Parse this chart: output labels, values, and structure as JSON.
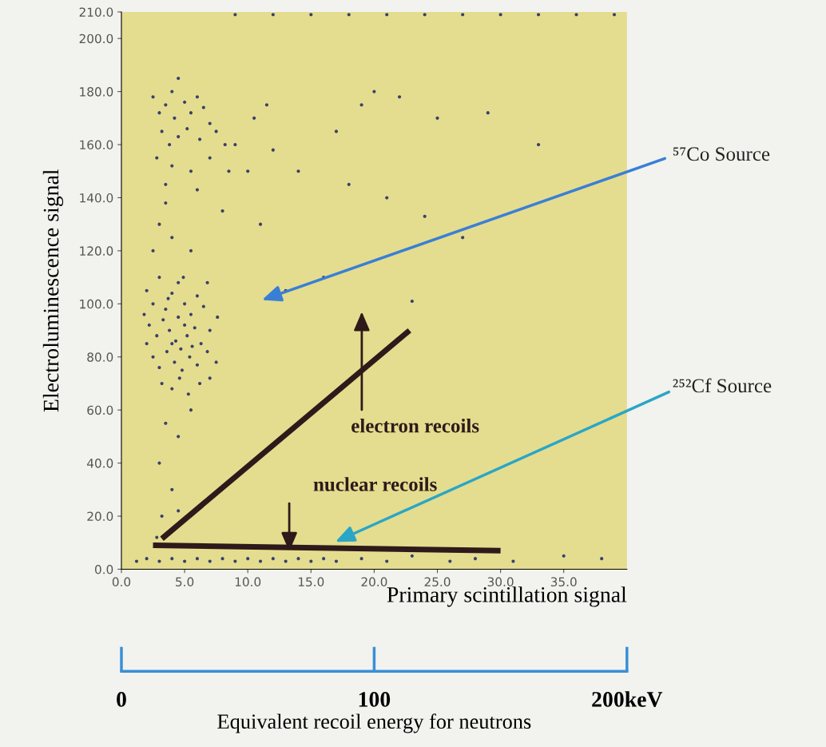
{
  "chart_data": {
    "type": "scatter",
    "xlabel": "Primary scintillation signal",
    "ylabel": "Electroluminescence signal",
    "x2label": "Equivalent recoil energy for neutrons",
    "xlim": [
      0,
      40
    ],
    "xticks": [
      {
        "value": 0,
        "label": "0.0"
      },
      {
        "value": 5,
        "label": "5.0"
      },
      {
        "value": 10,
        "label": "10.0"
      },
      {
        "value": 15,
        "label": "15.0"
      },
      {
        "value": 20,
        "label": "20.0"
      },
      {
        "value": 25,
        "label": "25.0"
      },
      {
        "value": 30,
        "label": "30.0"
      },
      {
        "value": 35,
        "label": "35.0"
      }
    ],
    "ylim": [
      0,
      210
    ],
    "yticks": [
      {
        "value": 0,
        "label": "0.0"
      },
      {
        "value": 20,
        "label": "20.0"
      },
      {
        "value": 40,
        "label": "40.0"
      },
      {
        "value": 60,
        "label": "60.0"
      },
      {
        "value": 80,
        "label": "80.0"
      },
      {
        "value": 100,
        "label": "100.0"
      },
      {
        "value": 120,
        "label": "120.0"
      },
      {
        "value": 140,
        "label": "140.0"
      },
      {
        "value": 160,
        "label": "160.0"
      },
      {
        "value": 180,
        "label": "180.0"
      },
      {
        "value": 200,
        "label": "200.0"
      },
      {
        "value": 210,
        "label": "210.0"
      }
    ],
    "x2lim": [
      0,
      200
    ],
    "x2ticks": [
      0,
      100,
      {
        "value": 200,
        "label": "200keV"
      }
    ],
    "grid": false,
    "legend": false,
    "series": [
      {
        "marker": "circle",
        "color": "#3b3f6b",
        "x": [
          2.5,
          3.0,
          3.5,
          4.0,
          4.5,
          4.2,
          5.0,
          5.5,
          6.0,
          6.5,
          7.0,
          3.2,
          3.8,
          4.5,
          5.2,
          6.2,
          7.5,
          8.2,
          2.8,
          4.0,
          5.5,
          7.0,
          8.5,
          3.5,
          6.0,
          10.5,
          9.0,
          11.5,
          10.0,
          12.0,
          3.0,
          4.0,
          3.5,
          5.5,
          8.0,
          2.5,
          11.0,
          14.0,
          17.0,
          19.0,
          20.0,
          22.0,
          25.0,
          29.0,
          33.0,
          18.0,
          21.0,
          24.0,
          27.0,
          16.0,
          13.0,
          23.0,
          2.0,
          2.5,
          3.0,
          3.5,
          4.0,
          4.5,
          5.0,
          5.5,
          6.0,
          6.5,
          2.2,
          2.8,
          3.3,
          3.8,
          4.3,
          4.7,
          5.2,
          5.8,
          6.3,
          7.0,
          2.5,
          3.0,
          3.6,
          4.2,
          4.8,
          5.4,
          6.0,
          6.8,
          7.5,
          3.2,
          4.0,
          4.6,
          5.3,
          6.2,
          7.0,
          4.5,
          5.0,
          4.0,
          5.6,
          3.7,
          4.9,
          6.8,
          7.6,
          2.0,
          1.8,
          3.5,
          4.5,
          3.0,
          4.0,
          3.2,
          4.5,
          2.8,
          5.5,
          1.2,
          2.0,
          3.0,
          4.0,
          5.0,
          6.0,
          7.0,
          8.0,
          9.0,
          10.0,
          11.0,
          12.0,
          13.0,
          14.0,
          15.0,
          16.0,
          17.0,
          19.0,
          21.0,
          23.0,
          26.0,
          28.0,
          31.0,
          35.0,
          38.0,
          9.0,
          12.0,
          15.0,
          18.0,
          21.0,
          24.0,
          27.0,
          30.0,
          33.0,
          36.0,
          39.0
        ],
        "values": [
          178,
          172,
          175,
          180,
          185,
          170,
          176,
          172,
          178,
          174,
          168,
          165,
          160,
          163,
          166,
          162,
          165,
          160,
          155,
          152,
          150,
          155,
          150,
          145,
          143,
          170,
          160,
          175,
          150,
          158,
          130,
          125,
          138,
          120,
          135,
          120,
          130,
          150,
          165,
          175,
          180,
          178,
          170,
          172,
          160,
          145,
          140,
          133,
          125,
          110,
          105,
          101,
          105,
          100,
          110,
          98,
          104,
          108,
          100,
          96,
          103,
          99,
          92,
          88,
          94,
          90,
          86,
          83,
          88,
          91,
          85,
          90,
          80,
          76,
          82,
          78,
          75,
          80,
          77,
          82,
          78,
          70,
          68,
          72,
          66,
          70,
          72,
          95,
          92,
          85,
          84,
          102,
          110,
          108,
          95,
          85,
          96,
          55,
          50,
          40,
          30,
          20,
          22,
          12,
          60,
          3,
          4,
          3,
          4,
          3,
          4,
          3,
          4,
          3,
          4,
          3,
          4,
          3,
          4,
          3,
          4,
          3,
          4,
          3,
          5,
          3,
          4,
          3,
          5,
          4,
          209,
          209,
          209,
          209,
          209,
          209,
          209,
          209,
          209,
          209,
          209
        ]
      },
      {
        "type": "line",
        "color": "#2e1a1a",
        "x": [
          3.2,
          22.8
        ],
        "values": [
          11.5,
          90
        ]
      },
      {
        "type": "line",
        "color": "#2e1a1a",
        "x": [
          2.5,
          30
        ],
        "values": [
          9,
          7
        ]
      }
    ],
    "annotations": [
      "⁵⁷Co Source",
      "²⁵²Cf Source",
      "electron recoils",
      "nuclear recoils"
    ]
  }
}
